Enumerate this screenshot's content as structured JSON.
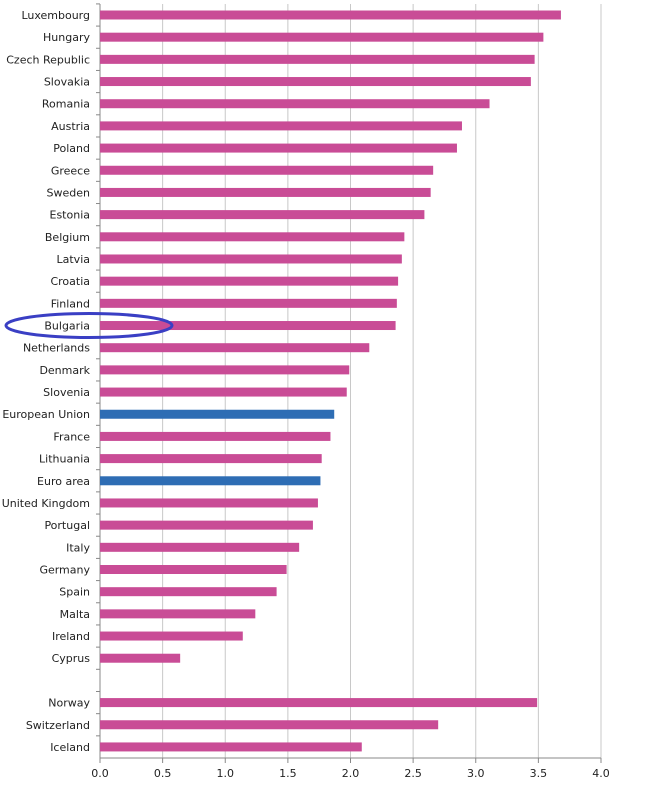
{
  "chart_data": {
    "type": "bar",
    "orientation": "horizontal",
    "title": "",
    "xlabel": "",
    "ylabel": "",
    "xlim": [
      0,
      4.0
    ],
    "xticks": [
      "0.0",
      "0.5",
      "1.0",
      "1.5",
      "2.0",
      "2.5",
      "3.0",
      "3.5",
      "4.0"
    ],
    "grid": "vertical",
    "legend": "none",
    "colors": {
      "country": "#c94c96",
      "aggregate": "#2e6db4",
      "highlight_ellipse": "#3a3fc4"
    },
    "highlighted": "Bulgaria",
    "bars": [
      {
        "label": "Luxembourg",
        "value": 3.68
      },
      {
        "label": "Hungary",
        "value": 3.54
      },
      {
        "label": "Czech Republic",
        "value": 3.47
      },
      {
        "label": "Slovakia",
        "value": 3.44
      },
      {
        "label": "Romania",
        "value": 3.11
      },
      {
        "label": "Austria",
        "value": 2.89
      },
      {
        "label": "Poland",
        "value": 2.85
      },
      {
        "label": "Greece",
        "value": 2.66
      },
      {
        "label": "Sweden",
        "value": 2.64
      },
      {
        "label": "Estonia",
        "value": 2.59
      },
      {
        "label": "Belgium",
        "value": 2.43
      },
      {
        "label": "Latvia",
        "value": 2.41
      },
      {
        "label": "Croatia",
        "value": 2.38
      },
      {
        "label": "Finland",
        "value": 2.37
      },
      {
        "label": "Bulgaria",
        "value": 2.36
      },
      {
        "label": "Netherlands",
        "value": 2.15
      },
      {
        "label": "Denmark",
        "value": 1.99
      },
      {
        "label": "Slovenia",
        "value": 1.97
      },
      {
        "label": "European Union",
        "value": 1.87,
        "aggregate": true
      },
      {
        "label": "France",
        "value": 1.84
      },
      {
        "label": "Lithuania",
        "value": 1.77
      },
      {
        "label": "Euro area",
        "value": 1.76,
        "aggregate": true
      },
      {
        "label": "United Kingdom",
        "value": 1.74
      },
      {
        "label": "Portugal",
        "value": 1.7
      },
      {
        "label": "Italy",
        "value": 1.59
      },
      {
        "label": "Germany",
        "value": 1.49
      },
      {
        "label": "Spain",
        "value": 1.41
      },
      {
        "label": "Malta",
        "value": 1.24
      },
      {
        "label": "Ireland",
        "value": 1.14
      },
      {
        "label": "Cyprus",
        "value": 0.64
      },
      {
        "label": "",
        "value": null
      },
      {
        "label": "Norway",
        "value": 3.49
      },
      {
        "label": "Switzerland",
        "value": 2.7
      },
      {
        "label": "Iceland",
        "value": 2.09
      }
    ]
  }
}
